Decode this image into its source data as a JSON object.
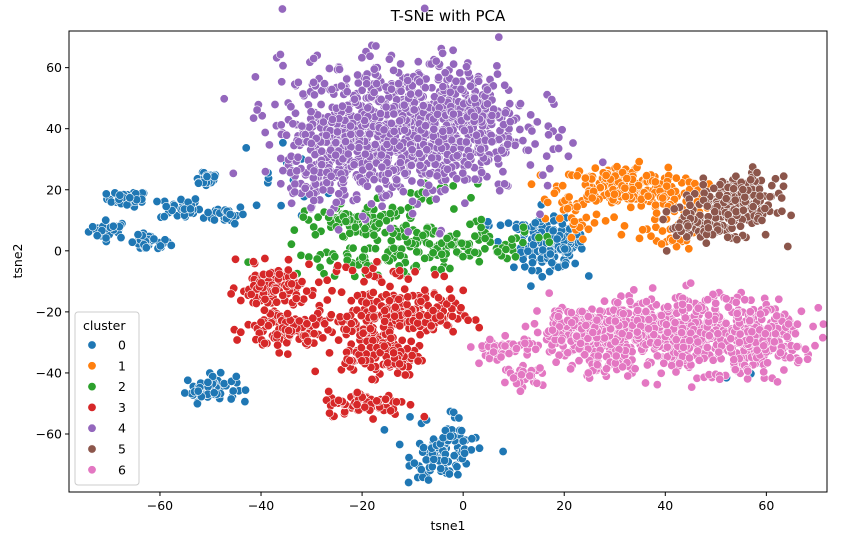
{
  "chart_data": {
    "type": "scatter",
    "title": "T-SNE with PCA",
    "xlabel": "tsne1",
    "ylabel": "tsne2",
    "xlim": [
      -78,
      72
    ],
    "ylim": [
      -79,
      72
    ],
    "xticks": [
      -60,
      -40,
      -20,
      0,
      20,
      40,
      60
    ],
    "yticks": [
      -60,
      -40,
      -20,
      0,
      20,
      40,
      60
    ],
    "grid": false,
    "legend": {
      "title": "cluster",
      "placement": "lower-left",
      "entries": [
        "0",
        "1",
        "2",
        "3",
        "4",
        "5",
        "6"
      ]
    },
    "colors": {
      "0": "#1f77b4",
      "1": "#ff7f0e",
      "2": "#2ca02c",
      "3": "#d62728",
      "4": "#9467bd",
      "5": "#8c564b",
      "6": "#e377c2"
    },
    "clusters": [
      {
        "name": "0",
        "blobs": [
          {
            "cx": -70,
            "cy": 7,
            "sx": 2,
            "sy": 1.5,
            "n": 30
          },
          {
            "cx": -66.5,
            "cy": 17,
            "sx": 2,
            "sy": 1.3,
            "n": 35
          },
          {
            "cx": -62,
            "cy": 2.5,
            "sx": 2,
            "sy": 1.3,
            "n": 35
          },
          {
            "cx": -56,
            "cy": 14,
            "sx": 2,
            "sy": 2,
            "n": 30
          },
          {
            "cx": -51,
            "cy": 24,
            "sx": 1.5,
            "sy": 1.5,
            "n": 20
          },
          {
            "cx": -47,
            "cy": 12,
            "sx": 2,
            "sy": 1.5,
            "n": 30
          },
          {
            "cx": -50,
            "cy": -45,
            "sx": 2.5,
            "sy": 2.2,
            "n": 60
          },
          {
            "cx": 17,
            "cy": 2,
            "sx": 3.5,
            "sy": 4,
            "n": 180
          },
          {
            "cx": -4,
            "cy": -67,
            "sx": 3,
            "sy": 3.5,
            "n": 90
          },
          {
            "cx": -4,
            "cy": -59,
            "sx": 5,
            "sy": 4,
            "n": 25
          },
          {
            "cx": 7,
            "cy": 8,
            "sx": 4,
            "sy": 1,
            "n": 15
          },
          {
            "cx": -35,
            "cy": 25,
            "sx": 5,
            "sy": 6,
            "n": 15
          },
          {
            "cx": 54,
            "cy": -38,
            "sx": 2,
            "sy": 3,
            "n": 8
          }
        ]
      },
      {
        "name": "1",
        "blobs": [
          {
            "cx": 31,
            "cy": 21,
            "sx": 6,
            "sy": 3.5,
            "n": 200
          },
          {
            "cx": 43,
            "cy": 15,
            "sx": 4,
            "sy": 5,
            "n": 60
          },
          {
            "cx": 40,
            "cy": 4,
            "sx": 4,
            "sy": 3,
            "n": 25
          },
          {
            "cx": 23,
            "cy": 10,
            "sx": 3,
            "sy": 4,
            "n": 25
          }
        ]
      },
      {
        "name": "2",
        "blobs": [
          {
            "cx": -20,
            "cy": 10,
            "sx": 6,
            "sy": 2.5,
            "n": 90
          },
          {
            "cx": -7,
            "cy": 1,
            "sx": 9,
            "sy": 3,
            "n": 90
          },
          {
            "cx": -20,
            "cy": -4,
            "sx": 6,
            "sy": 2,
            "n": 40
          },
          {
            "cx": 5,
            "cy": 3,
            "sx": 6,
            "sy": 3,
            "n": 35
          },
          {
            "cx": -5,
            "cy": 18,
            "sx": 5,
            "sy": 3,
            "n": 20
          }
        ]
      },
      {
        "name": "3",
        "blobs": [
          {
            "cx": -38,
            "cy": -12,
            "sx": 3,
            "sy": 3.5,
            "n": 120
          },
          {
            "cx": -35,
            "cy": -26,
            "sx": 4,
            "sy": 3.5,
            "n": 110
          },
          {
            "cx": -18,
            "cy": -22,
            "sx": 5,
            "sy": 5,
            "n": 130
          },
          {
            "cx": -8,
            "cy": -21,
            "sx": 4,
            "sy": 4,
            "n": 110
          },
          {
            "cx": -16,
            "cy": -35,
            "sx": 4,
            "sy": 3,
            "n": 90
          },
          {
            "cx": -19,
            "cy": -50,
            "sx": 4,
            "sy": 2,
            "n": 80
          },
          {
            "cx": -18,
            "cy": -7,
            "sx": 8,
            "sy": 2,
            "n": 25
          }
        ]
      },
      {
        "name": "4",
        "blobs": [
          {
            "cx": -12,
            "cy": 40,
            "sx": 12,
            "sy": 11,
            "n": 900
          },
          {
            "cx": -22,
            "cy": 33,
            "sx": 6,
            "sy": 8,
            "n": 150
          },
          {
            "cx": 0,
            "cy": 45,
            "sx": 5,
            "sy": 8,
            "n": 120
          },
          {
            "cx": -28,
            "cy": 25,
            "sx": 4,
            "sy": 4,
            "n": 60
          }
        ]
      },
      {
        "name": "5",
        "blobs": [
          {
            "cx": 54,
            "cy": 15,
            "sx": 4,
            "sy": 4.5,
            "n": 230
          },
          {
            "cx": 47,
            "cy": 8,
            "sx": 3,
            "sy": 3,
            "n": 50
          }
        ]
      },
      {
        "name": "6",
        "blobs": [
          {
            "cx": 43,
            "cy": -27,
            "sx": 11,
            "sy": 6,
            "n": 600
          },
          {
            "cx": 22,
            "cy": -26,
            "sx": 4,
            "sy": 4,
            "n": 140
          },
          {
            "cx": 58,
            "cy": -30,
            "sx": 4,
            "sy": 5,
            "n": 120
          },
          {
            "cx": 8,
            "cy": -32,
            "sx": 3,
            "sy": 2,
            "n": 45
          },
          {
            "cx": 12,
            "cy": -41,
            "sx": 2,
            "sy": 1.5,
            "n": 30
          },
          {
            "cx": 28,
            "cy": -38,
            "sx": 4,
            "sy": 2,
            "n": 30
          }
        ]
      }
    ]
  }
}
